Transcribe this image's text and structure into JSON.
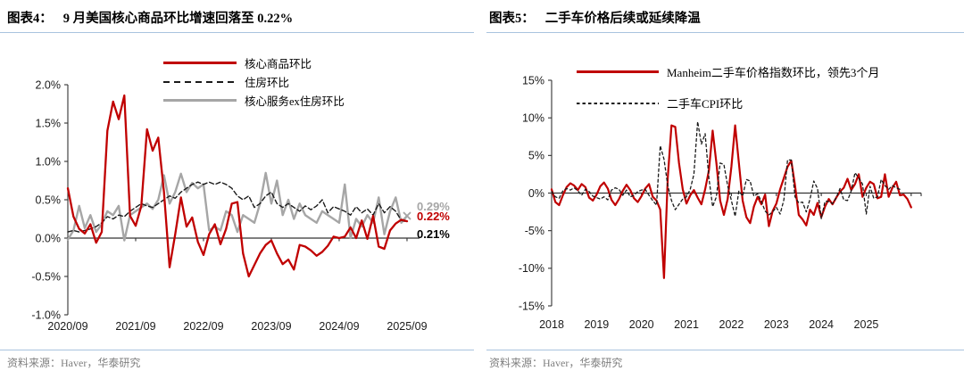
{
  "panels": [
    {
      "tag": "图表4：",
      "title": "9 月美国核心商品环比增速回落至 0.22%",
      "source": "资料来源：Haver，华泰研究"
    },
    {
      "tag": "图表5：",
      "title": "二手车价格后续或延续降温",
      "source": "资料来源：Haver，华泰研究"
    }
  ],
  "colors": {
    "accent_red": "#C00000",
    "line_gray": "#A6A6A6",
    "line_black": "#1A1A1A",
    "rule_blue": "#A9C3DE",
    "source_gray": "#7F7F7F",
    "axis_black": "#333333"
  },
  "chart_data": [
    {
      "type": "line",
      "title": "9 月美国核心商品环比增速回落至 0.22%",
      "x_unit": "month",
      "x_start": "2020/09",
      "x_tick_labels": [
        "2020/09",
        "2021/09",
        "2022/09",
        "2023/09",
        "2024/09",
        "2025/09"
      ],
      "y_tick_labels": [
        "2.0%",
        "1.5%",
        "1.0%",
        "0.5%",
        "0.0%",
        "-0.5%",
        "-1.0%"
      ],
      "y_ticks": [
        2.0,
        1.5,
        1.0,
        0.5,
        0.0,
        -0.5,
        -1.0
      ],
      "ylim": [
        -1.0,
        2.0
      ],
      "unit": "%",
      "grid": false,
      "legend_position": "top",
      "series": [
        {
          "id": "core-goods-mom",
          "name": "核心商品环比",
          "color": "#C00000",
          "style": "solid",
          "values": [
            0.65,
            0.28,
            0.12,
            0.06,
            0.18,
            -0.06,
            0.08,
            1.4,
            1.78,
            1.55,
            1.86,
            0.29,
            0.16,
            0.42,
            1.42,
            1.14,
            1.31,
            0.6,
            -0.38,
            0.05,
            0.53,
            0.15,
            0.27,
            -0.05,
            -0.22,
            0.05,
            0.18,
            -0.08,
            0.12,
            0.45,
            0.47,
            -0.2,
            -0.5,
            -0.35,
            -0.2,
            -0.09,
            -0.03,
            -0.2,
            -0.34,
            -0.28,
            -0.41,
            -0.09,
            -0.11,
            -0.16,
            -0.23,
            -0.18,
            -0.1,
            0.02,
            0.0,
            0.02,
            0.14,
            0.0,
            0.23,
            -0.01,
            0.29,
            -0.11,
            -0.14,
            0.1,
            0.19,
            0.24,
            0.22
          ]
        },
        {
          "id": "housing-mom",
          "name": "住房环比",
          "color": "#1A1A1A",
          "style": "dashed",
          "values": [
            0.08,
            0.1,
            0.08,
            0.1,
            0.12,
            0.15,
            0.2,
            0.28,
            0.25,
            0.3,
            0.28,
            0.35,
            0.4,
            0.45,
            0.42,
            0.4,
            0.45,
            0.5,
            0.55,
            0.52,
            0.6,
            0.65,
            0.7,
            0.73,
            0.7,
            0.73,
            0.7,
            0.73,
            0.7,
            0.65,
            0.55,
            0.5,
            0.55,
            0.4,
            0.45,
            0.55,
            0.6,
            0.45,
            0.4,
            0.45,
            0.4,
            0.35,
            0.42,
            0.37,
            0.42,
            0.5,
            0.33,
            0.41,
            0.38,
            0.35,
            0.3,
            0.41,
            0.33,
            0.38,
            0.3,
            0.45,
            0.33,
            0.41,
            0.35,
            0.23,
            0.21
          ]
        },
        {
          "id": "core-services-ex-housing-mom",
          "name": "核心服务ex住房环比",
          "color": "#A6A6A6",
          "style": "solid",
          "end_marker": "x",
          "values": [
            -0.02,
            0.1,
            0.42,
            0.13,
            0.3,
            0.08,
            0.18,
            0.35,
            0.3,
            0.42,
            -0.03,
            0.3,
            0.35,
            0.4,
            0.45,
            0.38,
            0.5,
            0.82,
            0.45,
            0.6,
            0.84,
            0.6,
            0.72,
            0.65,
            0.7,
            0.1,
            0.15,
            0.1,
            0.35,
            0.3,
            0.08,
            0.3,
            0.25,
            0.2,
            0.45,
            0.85,
            0.45,
            0.75,
            0.3,
            0.5,
            0.25,
            0.45,
            0.3,
            0.25,
            0.2,
            0.35,
            0.3,
            0.25,
            0.2,
            0.7,
            0.0,
            0.25,
            0.15,
            0.3,
            0.2,
            0.53,
            0.05,
            0.35,
            0.53,
            0.2,
            0.29
          ]
        }
      ],
      "end_labels": [
        {
          "text": "0.29%",
          "color": "#A6A6A6"
        },
        {
          "text": "0.22%",
          "color": "#C00000"
        },
        {
          "text": "0.21%",
          "color": "#000000"
        }
      ]
    },
    {
      "type": "line",
      "title": "二手车价格后续或延续降温",
      "x_unit": "month",
      "x_start": "2018/01",
      "x_tick_labels": [
        "2018",
        "2019",
        "2020",
        "2021",
        "2022",
        "2023",
        "2024",
        "2025"
      ],
      "y_tick_labels": [
        "15%",
        "10%",
        "5%",
        "0%",
        "-5%",
        "-10%",
        "-15%"
      ],
      "y_ticks": [
        15,
        10,
        5,
        0,
        -5,
        -10,
        -15
      ],
      "ylim": [
        -15,
        15
      ],
      "unit": "%",
      "grid": false,
      "legend_position": "top",
      "series": [
        {
          "id": "manheim-used-vehicle-index-mom",
          "name": "Manheim二手车价格指数环比，领先3个月",
          "color": "#C00000",
          "style": "solid",
          "values": [
            0.5,
            -1.2,
            -1.6,
            -0.3,
            0.8,
            1.3,
            1.0,
            0.4,
            1.2,
            0.8,
            -0.6,
            -1.0,
            -0.2,
            0.9,
            1.4,
            0.6,
            -0.9,
            -1.6,
            -0.8,
            0.3,
            1.1,
            0.4,
            -0.7,
            -1.2,
            -0.4,
            0.6,
            1.2,
            -0.5,
            -1.0,
            -2.2,
            -11.3,
            2.0,
            9.0,
            8.8,
            4.0,
            0.5,
            -1.4,
            -0.3,
            0.4,
            -0.6,
            -1.5,
            0.5,
            3.0,
            8.3,
            4.0,
            -1.0,
            -2.9,
            -0.8,
            3.5,
            9.0,
            4.0,
            -1.0,
            -3.2,
            -4.0,
            -1.8,
            -0.5,
            -1.5,
            -0.2,
            -4.4,
            -2.4,
            -1.4,
            0.5,
            2.0,
            3.5,
            4.3,
            1.0,
            -2.9,
            -3.5,
            -4.3,
            -2.2,
            -2.9,
            -1.3,
            -3.2,
            -1.8,
            -0.8,
            -1.5,
            -0.6,
            0.2,
            0.7,
            1.9,
            0.4,
            1.2,
            2.5,
            -0.5,
            0.7,
            1.5,
            1.2,
            -0.7,
            -0.5,
            2.5,
            -0.5,
            0.7,
            1.5,
            -0.3,
            -0.2,
            -0.8,
            -1.9
          ]
        },
        {
          "id": "used-car-cpi-mom",
          "name": "二手车CPI环比",
          "color": "#1A1A1A",
          "style": "dashed",
          "values": [
            0.2,
            -0.5,
            -0.7,
            0.3,
            0.6,
            0.4,
            0.7,
            0.3,
            -0.3,
            0.5,
            0.2,
            -0.4,
            -0.6,
            -0.8,
            -0.5,
            -0.9,
            0.4,
            0.7,
            0.5,
            -0.3,
            0.4,
            -0.5,
            -0.3,
            0.2,
            0.4,
            0.5,
            -0.3,
            -1.0,
            -1.6,
            6.3,
            4.5,
            1.0,
            -1.0,
            -2.2,
            -1.5,
            -0.8,
            -0.5,
            0.5,
            2.5,
            9.5,
            6.5,
            7.9,
            2.0,
            -1.8,
            -0.5,
            4.0,
            3.8,
            1.0,
            -1.0,
            -3.1,
            0.3,
            -0.4,
            1.8,
            1.6,
            -0.4,
            -0.1,
            -1.1,
            -2.4,
            -2.9,
            -2.5,
            -1.9,
            -2.8,
            -0.9,
            4.4,
            4.4,
            -0.5,
            -1.3,
            -1.2,
            -2.5,
            -0.8,
            1.6,
            0.6,
            -3.4,
            -1.1,
            -1.1,
            -1.4,
            -0.6,
            0.6,
            -0.9,
            -1.0,
            0.3,
            2.7,
            2.0,
            1.2,
            -2.8,
            0.9,
            -0.7,
            -0.5,
            1.8,
            1.0,
            0.5,
            1.0,
            0.7,
            0.5
          ]
        }
      ]
    }
  ]
}
